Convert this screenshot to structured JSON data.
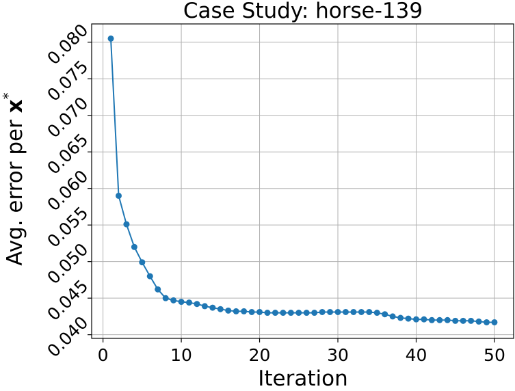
{
  "chart_data": {
    "type": "line",
    "title": "Case Study: horse-139",
    "xlabel": "Iteration",
    "ylabel_prefix": "Avg. error per ",
    "ylabel_symbol": "x",
    "ylabel_superscript": "*",
    "xlim": [
      -1.45,
      52.45
    ],
    "ylim": [
      0.0395,
      0.0825
    ],
    "xticks": [
      0,
      10,
      20,
      30,
      40,
      50
    ],
    "xtick_labels": [
      "0",
      "10",
      "20",
      "30",
      "40",
      "50"
    ],
    "yticks": [
      0.04,
      0.045,
      0.05,
      0.055,
      0.06,
      0.065,
      0.07,
      0.075,
      0.08
    ],
    "ytick_labels": [
      "0.040",
      "0.045",
      "0.050",
      "0.055",
      "0.060",
      "0.065",
      "0.070",
      "0.075",
      "0.080"
    ],
    "grid": true,
    "color": "#1f77b4",
    "x": [
      1,
      2,
      3,
      4,
      5,
      6,
      7,
      8,
      9,
      10,
      11,
      12,
      13,
      14,
      15,
      16,
      17,
      18,
      19,
      20,
      21,
      22,
      23,
      24,
      25,
      26,
      27,
      28,
      29,
      30,
      31,
      32,
      33,
      34,
      35,
      36,
      37,
      38,
      39,
      40,
      41,
      42,
      43,
      44,
      45,
      46,
      47,
      48,
      49,
      50
    ],
    "y": [
      0.0805,
      0.059,
      0.0551,
      0.052,
      0.0499,
      0.048,
      0.0462,
      0.045,
      0.0447,
      0.0445,
      0.0444,
      0.0442,
      0.0439,
      0.0437,
      0.0435,
      0.0433,
      0.0432,
      0.0432,
      0.0431,
      0.0431,
      0.043,
      0.043,
      0.043,
      0.043,
      0.043,
      0.043,
      0.043,
      0.0431,
      0.0431,
      0.0431,
      0.0431,
      0.0431,
      0.0431,
      0.0431,
      0.043,
      0.0428,
      0.0425,
      0.0423,
      0.0422,
      0.0421,
      0.0421,
      0.042,
      0.042,
      0.042,
      0.0419,
      0.0419,
      0.0419,
      0.0418,
      0.0417,
      0.0417
    ]
  }
}
